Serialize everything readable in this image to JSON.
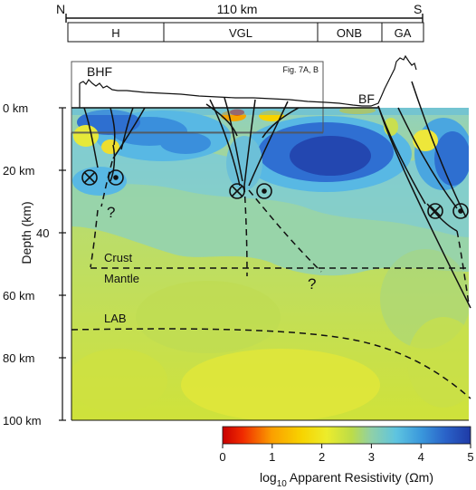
{
  "section": {
    "north_label": "N",
    "south_label": "S",
    "scale_label": "110 km",
    "zones": [
      "H",
      "VGL",
      "ONB",
      "GA"
    ],
    "inset_label": "Fig. 7A, B",
    "fault_labels": [
      "BHF",
      "BF"
    ],
    "depth_ticks": [
      "0 km",
      "20 km",
      "40",
      "60 km",
      "80 km",
      "100 km"
    ],
    "depth_axis_label": "Depth (km)",
    "boundary_labels": [
      "Crust",
      "Mantle",
      "LAB"
    ],
    "question_marks": [
      "?",
      "?"
    ]
  },
  "colorbar": {
    "ticks": [
      "0",
      "1",
      "2",
      "3",
      "4",
      "5"
    ],
    "label_prefix": "log",
    "label_sub": "10",
    "label_suffix": " Apparent Resistivity (Ωm)",
    "colors": [
      "#c80000",
      "#f04000",
      "#fbb800",
      "#f2ef2a",
      "#c6dd3b",
      "#8fd0a8",
      "#56c2de",
      "#2d7ed6",
      "#1f3aa6"
    ]
  }
}
